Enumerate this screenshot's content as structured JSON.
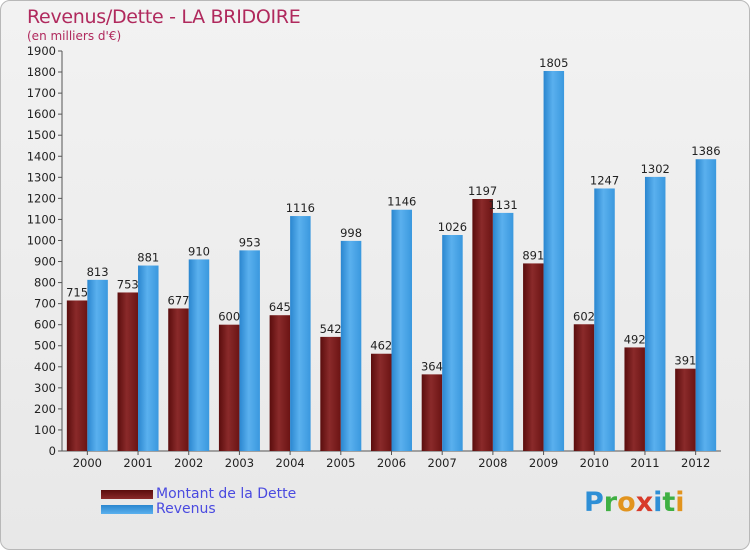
{
  "title": "Revenus/Dette - LA BRIDOIRE",
  "subtitle": "(en milliers d'€)",
  "logo": {
    "letters": [
      {
        "ch": "P",
        "color": "#2e8fd6"
      },
      {
        "ch": "r",
        "color": "#3fb043"
      },
      {
        "ch": "o",
        "color": "#e2941e"
      },
      {
        "ch": "x",
        "color": "#d83a2a"
      },
      {
        "ch": "i",
        "color": "#2e8fd6"
      },
      {
        "ch": "t",
        "color": "#3fb043"
      },
      {
        "ch": "i",
        "color": "#e2941e"
      }
    ]
  },
  "chart_data": {
    "type": "bar",
    "categories": [
      "2000",
      "2001",
      "2002",
      "2003",
      "2004",
      "2005",
      "2006",
      "2007",
      "2008",
      "2009",
      "2010",
      "2011",
      "2012"
    ],
    "series": [
      {
        "name": "Montant de la Dette",
        "color": "#7a1a1a",
        "values": [
          715,
          753,
          677,
          600,
          645,
          542,
          462,
          364,
          1197,
          891,
          602,
          492,
          391
        ]
      },
      {
        "name": "Revenus",
        "color": "#3d9de4",
        "values": [
          813,
          881,
          910,
          953,
          1116,
          998,
          1146,
          1026,
          1131,
          1805,
          1247,
          1302,
          1386
        ]
      }
    ],
    "ylim": [
      0,
      1900
    ],
    "ytick_step": 100,
    "grid": false,
    "legend_position": "bottom-left"
  }
}
